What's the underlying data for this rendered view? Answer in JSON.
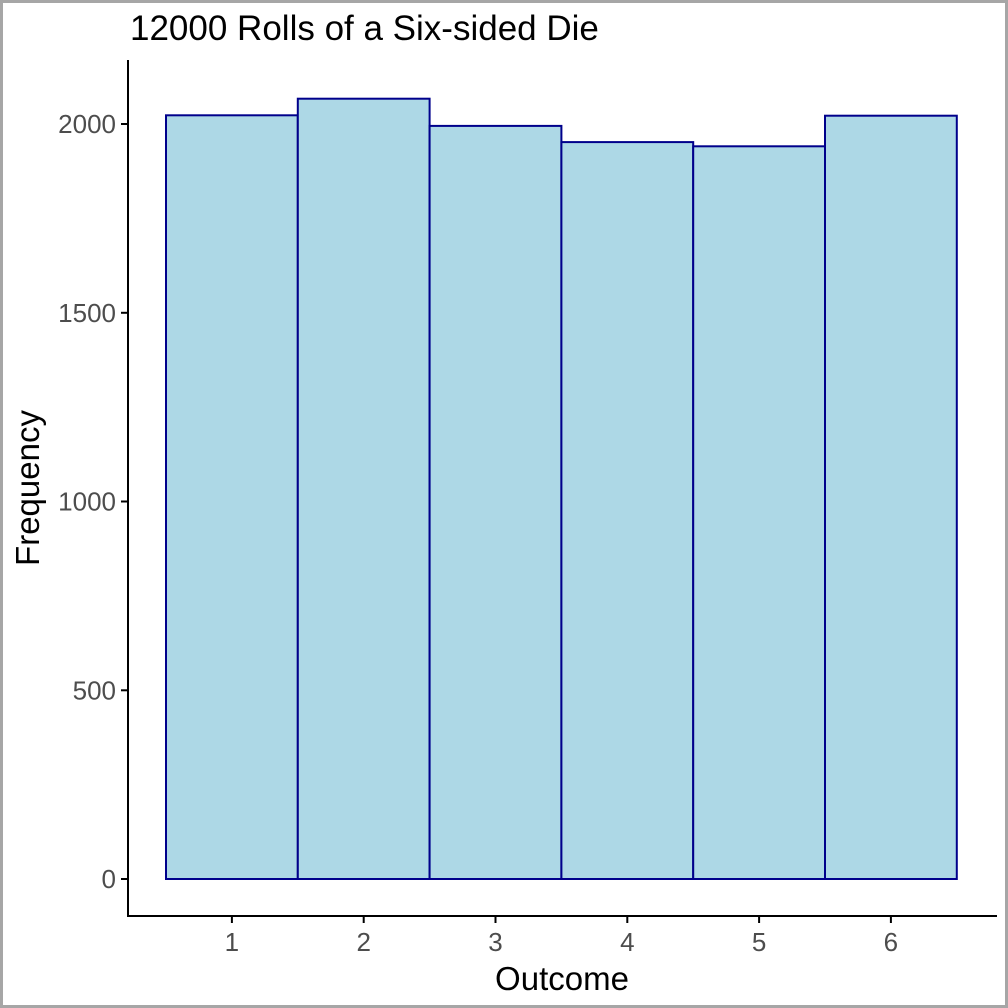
{
  "chart_data": {
    "type": "bar",
    "title": "12000 Rolls of a Six-sided Die",
    "xlabel": "Outcome",
    "ylabel": "Frequency",
    "categories": [
      "1",
      "2",
      "3",
      "4",
      "5",
      "6"
    ],
    "values": [
      2023,
      2067,
      1995,
      1952,
      1941,
      2022
    ],
    "yticks": [
      0,
      500,
      1000,
      1500,
      2000
    ],
    "yticklabels": [
      "0",
      "500",
      "1000",
      "1500",
      "2000"
    ],
    "ylim": [
      0,
      2100
    ],
    "grid": false,
    "colors": {
      "bar_fill": "#add8e6",
      "bar_stroke": "#00008b",
      "axis": "#000000",
      "tick_text": "#4d4d4d"
    }
  }
}
